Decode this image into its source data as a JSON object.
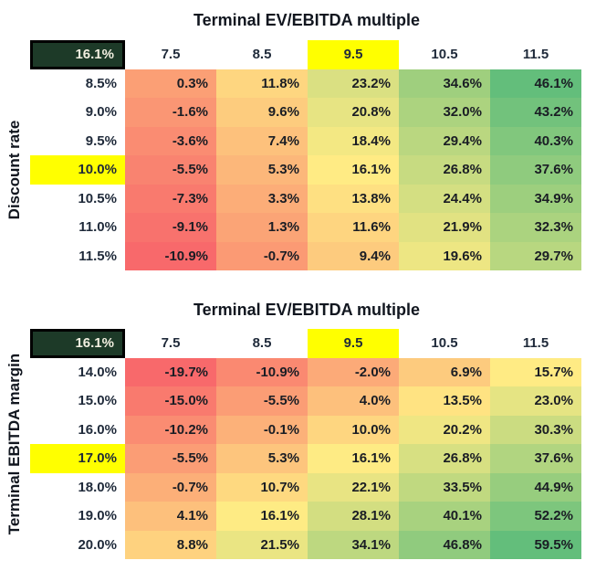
{
  "sheet": {
    "background": "#FFFFFF"
  },
  "colors": {
    "sheet_bg": "#FFFFFF",
    "scale_min": "#F8696B",
    "scale_mid": "#FFEB84",
    "scale_max": "#63BE7B",
    "highlight": "#FFFF00",
    "corner_fill": "#1D3A28",
    "corner_border": "#000000",
    "corner_text": "#F2EFE0",
    "header_text": "#1F2A3A",
    "value_text": "#1A1D24",
    "title_text": "#11161F"
  },
  "chart_data": [
    {
      "type": "heatmap",
      "title": "Terminal EV/EBITDA multiple",
      "ylabel": "Discount rate",
      "corner_value": "16.1%",
      "x_tick_labels": [
        "7.5",
        "8.5",
        "9.5",
        "10.5",
        "11.5"
      ],
      "highlighted_column": "9.5",
      "y_tick_labels": [
        "8.5%",
        "9.0%",
        "9.5%",
        "10.0%",
        "10.5%",
        "11.0%",
        "11.5%"
      ],
      "highlighted_row": "10.0%",
      "values_pct": [
        [
          0.3,
          11.8,
          23.2,
          34.6,
          46.1
        ],
        [
          -1.6,
          9.6,
          20.8,
          32.0,
          43.2
        ],
        [
          -3.6,
          7.4,
          18.4,
          29.4,
          40.3
        ],
        [
          -5.5,
          5.3,
          16.1,
          26.8,
          37.6
        ],
        [
          -7.3,
          3.3,
          13.8,
          24.4,
          34.9
        ],
        [
          -9.1,
          1.3,
          11.6,
          21.9,
          32.3
        ],
        [
          -10.9,
          -0.7,
          9.4,
          19.6,
          29.7
        ]
      ],
      "value_format": "0.0%",
      "color_scale": "red-yellow-green, min to median to max",
      "legend": "none",
      "grid_lines": "off"
    },
    {
      "type": "heatmap",
      "title": "Terminal EV/EBITDA multiple",
      "ylabel": "Terminal EBITDA margin",
      "corner_value": "16.1%",
      "x_tick_labels": [
        "7.5",
        "8.5",
        "9.5",
        "10.5",
        "11.5"
      ],
      "highlighted_column": "9.5",
      "y_tick_labels": [
        "14.0%",
        "15.0%",
        "16.0%",
        "17.0%",
        "18.0%",
        "19.0%",
        "20.0%"
      ],
      "highlighted_row": "17.0%",
      "values_pct": [
        [
          -19.7,
          -10.9,
          -2.0,
          6.9,
          15.7
        ],
        [
          -15.0,
          -5.5,
          4.0,
          13.5,
          23.0
        ],
        [
          -10.2,
          -0.1,
          10.0,
          20.2,
          30.3
        ],
        [
          -5.5,
          5.3,
          16.1,
          26.8,
          37.6
        ],
        [
          -0.7,
          10.7,
          22.1,
          33.5,
          44.9
        ],
        [
          4.1,
          16.1,
          28.1,
          40.1,
          52.2
        ],
        [
          8.8,
          21.5,
          34.1,
          46.8,
          59.5
        ]
      ],
      "value_format": "0.0%",
      "color_scale": "red-yellow-green, min to median to max",
      "legend": "none",
      "grid_lines": "off"
    }
  ]
}
